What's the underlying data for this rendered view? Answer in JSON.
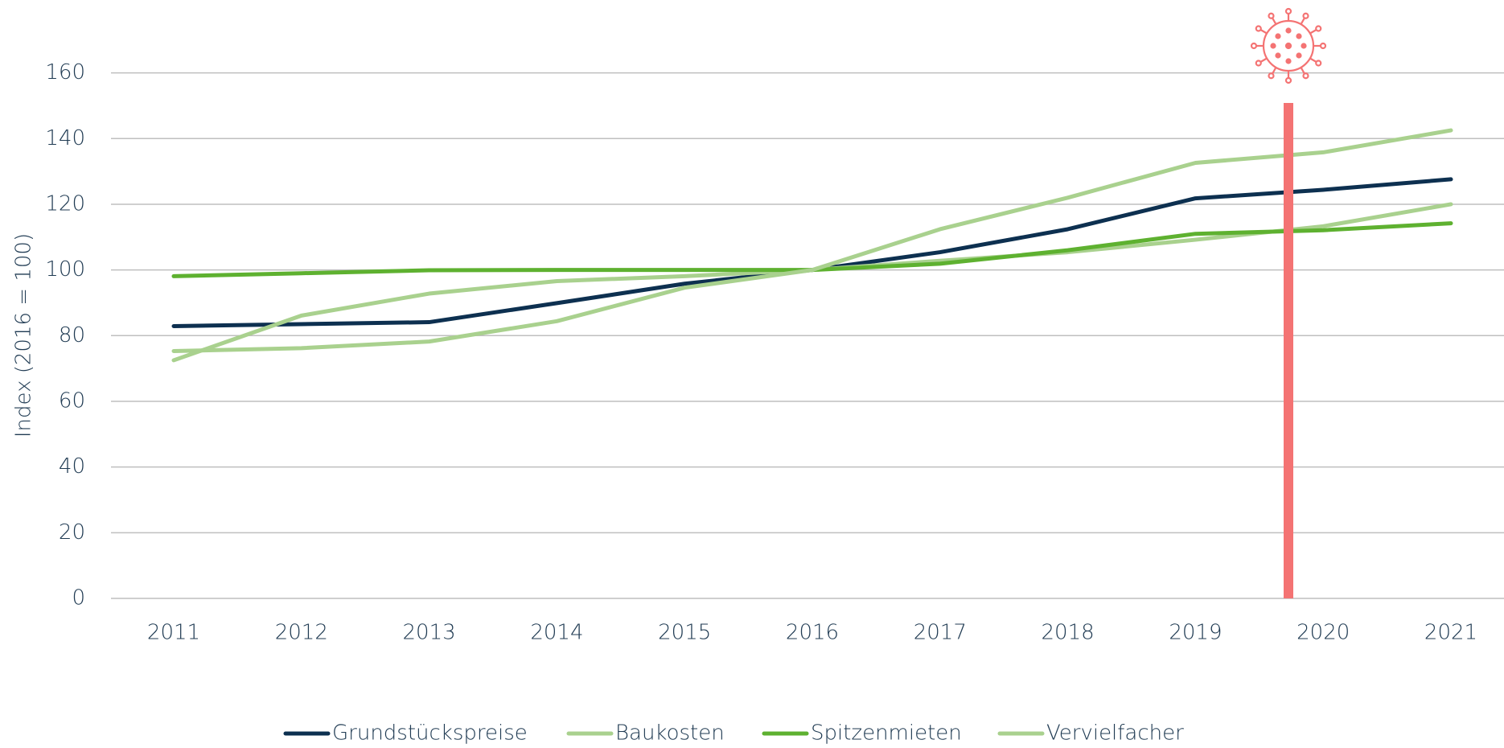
{
  "chart_data": {
    "type": "line",
    "y_label": "Index (2016 = 100)",
    "categories": [
      "2011",
      "2012",
      "2013",
      "2014",
      "2015",
      "2016",
      "2017",
      "2018",
      "2019",
      "2020",
      "2021"
    ],
    "series": [
      {
        "name": "Grundstückspreise",
        "color": "#0d3050",
        "values": [
          82.9,
          83.5,
          84.1,
          89.9,
          95.8,
          100,
          105.4,
          112.4,
          121.8,
          124.4,
          127.6
        ]
      },
      {
        "name": "Baukosten",
        "color": "#a9d18e",
        "values": [
          72.5,
          86.1,
          92.8,
          96.6,
          98.1,
          100,
          102.8,
          105.4,
          109.2,
          113.3,
          120
        ]
      },
      {
        "name": "Spitzenmieten",
        "color": "#5eb130",
        "values": [
          98.1,
          99,
          99.9,
          100,
          100,
          100,
          101.9,
          106,
          111,
          112.1,
          114.2
        ]
      },
      {
        "name": "Vervielfacher",
        "color": "#a9d18e",
        "values": [
          75.3,
          76.2,
          78.2,
          84.4,
          94.6,
          100,
          112.4,
          122,
          132.6,
          135.8,
          142.5
        ]
      }
    ],
    "ylim": [
      0,
      160
    ],
    "yticks": [
      0,
      20,
      40,
      60,
      80,
      100,
      120,
      140,
      160
    ],
    "grid": true
  }
}
